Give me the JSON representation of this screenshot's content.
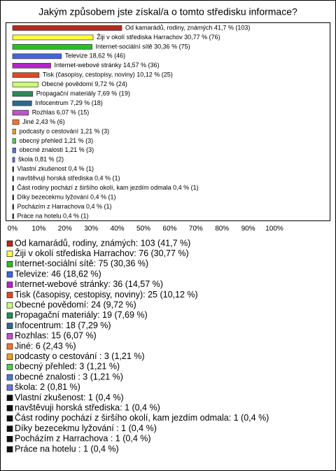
{
  "chart_data": {
    "type": "bar",
    "title": "Jakým způsobem jste získal/a o tomto středisku informace?",
    "values": [
      41.7,
      30.77,
      30.36,
      18.62,
      14.57,
      10.12,
      9.72,
      7.69,
      7.29,
      6.07,
      2.43,
      1.21,
      1.21,
      1.21,
      0.81,
      0.4,
      0.4,
      0.4,
      0.4,
      0.4,
      0.4
    ],
    "value_labels": [
      "Od kamarádů, rodiny, známých 41,7 % (103)",
      "Žiji v okolí střediska Harrachov 30,77 % (76)",
      "Internet-sociální sítě 30,36 % (75)",
      "Televize 18,62 % (46)",
      "Internet-webové stránky 14,57 % (36)",
      "Tisk (časopisy, cestopisy, noviny) 10,12 % (25)",
      "Obecné povědomí 9,72 % (24)",
      "Propagační materiály 7,69 % (19)",
      "Infocentrum 7,29 % (18)",
      "Rozhlas 6,07 % (15)",
      "Jiné 2,43 % (6)",
      "podcasty o cestování  1,21 % (3)",
      "obecný přehled 1,21 % (3)",
      "obecné znalosti  1,21 % (3)",
      "škola 0,81 % (2)",
      "Vlastní zkušenost 0,4 % (1)",
      "navštěvuji horská střediska 0,4 % (1)",
      "Část rodiny pochází z širšího okolí, kam jezdím odmala 0,4 % (1)",
      "Díky bezecekmu lyžování  0,4 % (1)",
      "Pocházím z Harrachova  0,4 % (1)",
      "Práce na hotelu  0,4 % (1)"
    ],
    "legend_labels": [
      "Od kamarádů, rodiny, známých: 103 (41,7 %)",
      "Žiji v okolí střediska Harrachov: 76 (30,77 %)",
      "Internet-sociální sítě: 75 (30,36 %)",
      "Televize: 46 (18,62 %)",
      "Internet-webové stránky: 36 (14,57 %)",
      "Tisk (časopisy, cestopisy, noviny): 25 (10,12 %)",
      "Obecné povědomí: 24 (9,72 %)",
      "Propagační materiály: 19 (7,69 %)",
      "Infocentrum: 18 (7,29 %)",
      "Rozhlas: 15 (6,07 %)",
      "Jiné: 6 (2,43 %)",
      "podcasty o cestování : 3 (1,21 %)",
      "obecný přehled: 3 (1,21 %)",
      "obecné znalosti : 3 (1,21 %)",
      "škola: 2 (0,81 %)",
      "Vlastní zkušenost: 1 (0,4 %)",
      "navštěvuji horská střediska: 1 (0,4 %)",
      "Část rodiny pochází z širšího okolí, kam jezdím odmala: 1 (0,4 %)",
      "Díky bezecekmu lyžování : 1 (0,4 %)",
      "Pocházím z Harrachova : 1 (0,4 %)",
      "Práce na hotelu : 1 (0,4 %)"
    ],
    "colors": [
      "#b22b1e",
      "#ffff44",
      "#2ebb2e",
      "#4466dd",
      "#bb22cc",
      "#e04a28",
      "#ccff77",
      "#2a8a55",
      "#2e6b8a",
      "#bb55cc",
      "#ee7733",
      "#f0a020",
      "#55cc55",
      "#5577cc",
      "#6677dd",
      "#111111",
      "#111111",
      "#111111",
      "#111111",
      "#111111",
      "#111111"
    ],
    "xlim": [
      0,
      100
    ],
    "xticks": [
      {
        "value": 0,
        "label": "0%"
      },
      {
        "value": 10,
        "label": "10%"
      },
      {
        "value": 20,
        "label": "20%"
      },
      {
        "value": 30,
        "label": "30%"
      },
      {
        "value": 40,
        "label": "40%"
      },
      {
        "value": 50,
        "label": "50%"
      },
      {
        "value": 60,
        "label": "60%"
      },
      {
        "value": 70,
        "label": "70%"
      },
      {
        "value": 80,
        "label": "80%"
      },
      {
        "value": 90,
        "label": "90%"
      },
      {
        "value": 100,
        "label": "100%"
      }
    ]
  }
}
